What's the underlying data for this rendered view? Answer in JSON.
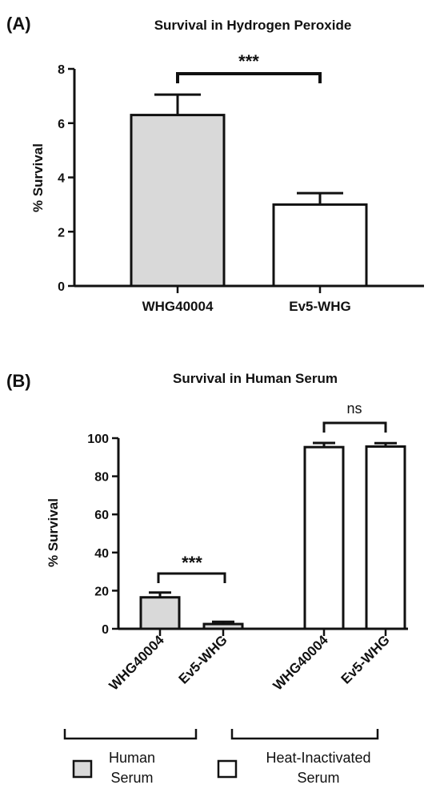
{
  "chart_data": [
    {
      "panel_label": "(A)",
      "type": "bar",
      "title": "Survival in Hydrogen Peroxide",
      "ylabel": "% Survival",
      "xlabel": "",
      "ylim": [
        0,
        8
      ],
      "yticks": [
        0,
        2,
        4,
        6,
        8
      ],
      "categories": [
        "WHG40004",
        "Ev5-WHG"
      ],
      "values": [
        6.3,
        3.0
      ],
      "errors": [
        0.75,
        0.42
      ],
      "bar_fills": [
        "#d9d9d9",
        "#ffffff"
      ],
      "significance": [
        {
          "between": [
            0,
            1
          ],
          "label": "***"
        }
      ]
    },
    {
      "panel_label": "(B)",
      "type": "bar",
      "title": "Survival in Human Serum",
      "ylabel": "% Survival",
      "xlabel": "",
      "ylim": [
        0,
        100
      ],
      "yticks": [
        0,
        20,
        40,
        60,
        80,
        100
      ],
      "categories": [
        "WHG40004",
        "Ev5-WHG",
        "WHG40004",
        "Ev5-WHG"
      ],
      "values": [
        16.5,
        2.5,
        95.3,
        95.6
      ],
      "errors": [
        2.5,
        1.2,
        2.2,
        1.8
      ],
      "bar_fills": [
        "#d9d9d9",
        "#d9d9d9",
        "#ffffff",
        "#ffffff"
      ],
      "significance": [
        {
          "between": [
            0,
            1
          ],
          "label": "***"
        },
        {
          "between": [
            2,
            3
          ],
          "label": "ns"
        }
      ],
      "groups": [
        {
          "label_lines": [
            "Human",
            "Serum"
          ],
          "fill": "#d9d9d9",
          "members": [
            0,
            1
          ]
        },
        {
          "label_lines": [
            "Heat-Inactivated",
            "Serum"
          ],
          "fill": "#ffffff",
          "members": [
            2,
            3
          ]
        }
      ]
    }
  ]
}
